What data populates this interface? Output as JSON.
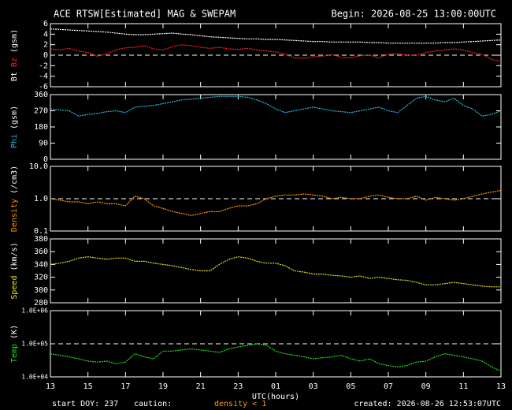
{
  "chart_data": {
    "type": "line",
    "title": "ACE RTSW[Estimated] MAG & SWEPAM",
    "begin": "Begin: 2026-08-25 13:00:00UTC",
    "xlabel": "UTC(hours)",
    "start": "start DOY: 237",
    "caution": "caution:",
    "caution_note": "density < 1",
    "caution_color": "#ff9900",
    "created": "created: 2026-08-26 12:53:07UTC",
    "xlim": [
      0,
      48
    ],
    "xticks": [
      {
        "value": 0,
        "label": "13"
      },
      {
        "value": 4,
        "label": "15"
      },
      {
        "value": 8,
        "label": "17"
      },
      {
        "value": 12,
        "label": "19"
      },
      {
        "value": 16,
        "label": "21"
      },
      {
        "value": 20,
        "label": "23"
      },
      {
        "value": 24,
        "label": "01"
      },
      {
        "value": 28,
        "label": "03"
      },
      {
        "value": 32,
        "label": "05"
      },
      {
        "value": 36,
        "label": "07"
      },
      {
        "value": 40,
        "label": "09"
      },
      {
        "value": 44,
        "label": "11"
      },
      {
        "value": 48,
        "label": "13"
      }
    ],
    "x": [
      0,
      1,
      2,
      3,
      4,
      5,
      6,
      7,
      8,
      9,
      10,
      11,
      12,
      13,
      14,
      15,
      16,
      17,
      18,
      19,
      20,
      21,
      22,
      23,
      24,
      25,
      26,
      27,
      28,
      29,
      30,
      31,
      32,
      33,
      34,
      35,
      36,
      37,
      38,
      39,
      40,
      41,
      42,
      43,
      44,
      45,
      46,
      47,
      48
    ],
    "panels": [
      {
        "ylabel": "(gsm)",
        "ylim": [
          -6,
          6
        ],
        "yticks": [
          -6,
          -4,
          -2,
          0,
          2,
          4,
          6
        ],
        "hline": 0,
        "log": false,
        "series": [
          {
            "name": "Bt",
            "color": "#ffffff",
            "values": [
              5.0,
              4.9,
              4.8,
              4.7,
              4.6,
              4.5,
              4.4,
              4.2,
              4.0,
              3.9,
              3.9,
              4.0,
              4.1,
              4.2,
              4.0,
              3.9,
              3.7,
              3.5,
              3.4,
              3.3,
              3.2,
              3.1,
              3.1,
              3.0,
              3.0,
              2.9,
              2.8,
              2.7,
              2.6,
              2.6,
              2.5,
              2.5,
              2.5,
              2.5,
              2.4,
              2.4,
              2.3,
              2.3,
              2.3,
              2.3,
              2.3,
              2.3,
              2.4,
              2.4,
              2.5,
              2.6,
              2.7,
              2.8,
              2.9
            ]
          },
          {
            "name": "Bz",
            "color": "#ff2020",
            "values": [
              1.2,
              1.0,
              1.3,
              0.8,
              0.5,
              -0.2,
              0.3,
              1.0,
              1.4,
              1.5,
              1.8,
              1.2,
              1.0,
              1.6,
              2.0,
              1.8,
              1.5,
              1.3,
              1.5,
              1.2,
              1.1,
              1.3,
              1.0,
              0.8,
              0.6,
              0.2,
              -0.5,
              -0.6,
              -0.3,
              -0.2,
              0.1,
              -0.4,
              -0.5,
              -0.1,
              0.0,
              -0.5,
              0.2,
              0.3,
              0.0,
              0.0,
              0.5,
              0.8,
              1.0,
              1.2,
              1.0,
              0.5,
              0.2,
              -0.8,
              -1.2
            ]
          }
        ]
      },
      {
        "ylabel": "(gsm)",
        "ylim": [
          0,
          360
        ],
        "yticks": [
          0,
          90,
          180,
          270,
          360
        ],
        "log": false,
        "series": [
          {
            "name": "Phi",
            "color": "#20c0e0",
            "values": [
              280,
              275,
              270,
              240,
              250,
              255,
              265,
              270,
              260,
              290,
              295,
              300,
              310,
              320,
              330,
              335,
              340,
              345,
              350,
              350,
              350,
              345,
              330,
              310,
              280,
              260,
              270,
              280,
              290,
              280,
              270,
              265,
              260,
              270,
              280,
              290,
              270,
              260,
              300,
              340,
              350,
              330,
              320,
              340,
              300,
              280,
              240,
              250,
              270
            ]
          }
        ]
      },
      {
        "ylabel": "(/cm3)",
        "ylim": [
          0.1,
          10
        ],
        "yticks": [
          0.1,
          {
            "value": 1,
            "label": "1.0"
          },
          {
            "value": 10,
            "label": "10.0"
          }
        ],
        "hline": 1,
        "log": true,
        "series": [
          {
            "name": "Density",
            "color": "#ff9900",
            "values": [
              1.0,
              0.9,
              0.8,
              0.8,
              0.7,
              0.8,
              0.7,
              0.7,
              0.6,
              1.2,
              1.0,
              0.6,
              0.5,
              0.4,
              0.35,
              0.3,
              0.35,
              0.4,
              0.4,
              0.5,
              0.6,
              0.6,
              0.7,
              1.0,
              1.2,
              1.3,
              1.3,
              1.4,
              1.3,
              1.2,
              1.0,
              1.1,
              1.0,
              1.0,
              1.2,
              1.3,
              1.1,
              1.0,
              1.0,
              1.2,
              0.9,
              1.1,
              1.0,
              0.9,
              1.0,
              1.2,
              1.4,
              1.6,
              1.8
            ]
          }
        ]
      },
      {
        "ylabel": "(km/s)",
        "ylim": [
          280,
          380
        ],
        "yticks": [
          280,
          300,
          320,
          340,
          360,
          380
        ],
        "log": false,
        "series": [
          {
            "name": "Speed",
            "color": "#e8e020",
            "values": [
              340,
              342,
              345,
              350,
              352,
              350,
              348,
              350,
              350,
              345,
              345,
              342,
              340,
              338,
              335,
              332,
              330,
              330,
              340,
              348,
              352,
              350,
              345,
              342,
              342,
              338,
              330,
              328,
              325,
              325,
              323,
              322,
              320,
              322,
              318,
              320,
              318,
              316,
              315,
              312,
              308,
              308,
              310,
              312,
              310,
              308,
              306,
              305,
              305
            ]
          }
        ]
      },
      {
        "ylabel": "(K)",
        "ylim": [
          10000,
          1000000
        ],
        "yticks": [
          {
            "value": 10000,
            "label": "1.0E+04"
          },
          {
            "value": 100000,
            "label": "1.0E+05"
          },
          {
            "value": 1000000,
            "label": "1.0E+06"
          }
        ],
        "hline": 100000,
        "log": true,
        "series": [
          {
            "name": "Temp",
            "color": "#20e020",
            "values": [
              50000,
              45000,
              40000,
              35000,
              30000,
              28000,
              30000,
              25000,
              28000,
              50000,
              40000,
              35000,
              60000,
              60000,
              65000,
              70000,
              65000,
              60000,
              55000,
              70000,
              80000,
              90000,
              100000,
              90000,
              60000,
              50000,
              45000,
              40000,
              35000,
              38000,
              40000,
              45000,
              35000,
              30000,
              35000,
              25000,
              22000,
              20000,
              22000,
              28000,
              30000,
              40000,
              50000,
              45000,
              40000,
              35000,
              30000,
              20000,
              15000
            ]
          }
        ]
      }
    ]
  }
}
